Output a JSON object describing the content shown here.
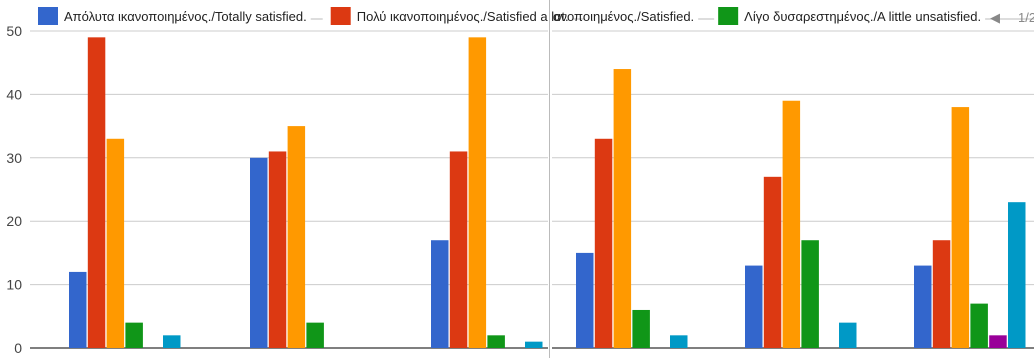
{
  "chart_data": [
    {
      "type": "bar",
      "categories": [
        "",
        "",
        ""
      ],
      "series": [
        {
          "name": "Απόλυτα ικανοποιημένος./Totally satisfied.",
          "color": "#3366cc",
          "values": [
            12,
            30,
            17
          ]
        },
        {
          "name": "Πολύ ικανοποιημένος./Satisfied a lot.",
          "color": "#dc3912",
          "values": [
            49,
            31,
            31
          ]
        },
        {
          "name": "",
          "color": "#ff9900",
          "values": [
            33,
            35,
            49
          ]
        },
        {
          "name": "",
          "color": "#109618",
          "values": [
            4,
            4,
            2
          ]
        },
        {
          "name": "",
          "color": "#990099",
          "values": [
            0,
            0,
            0
          ]
        },
        {
          "name": "",
          "color": "#0099c6",
          "values": [
            2,
            0,
            1
          ]
        }
      ],
      "ylim": [
        0,
        50
      ],
      "yticks": [
        0,
        10,
        20,
        30,
        40,
        50
      ],
      "grid": true,
      "legend": "top"
    },
    {
      "type": "bar",
      "categories": [
        "",
        "",
        ""
      ],
      "series": [
        {
          "name": "",
          "color": "#3366cc",
          "values": [
            15,
            13,
            13
          ]
        },
        {
          "name": "",
          "color": "#dc3912",
          "values": [
            33,
            27,
            17
          ]
        },
        {
          "name": "ανοποιημένος./Satisfied.",
          "color": "#ff9900",
          "values": [
            44,
            39,
            38
          ]
        },
        {
          "name": "Λίγο δυσαρεστημένος./A little unsatisfied.",
          "color": "#109618",
          "values": [
            6,
            17,
            7
          ]
        },
        {
          "name": "",
          "color": "#990099",
          "values": [
            0,
            0,
            2
          ]
        },
        {
          "name": "",
          "color": "#0099c6",
          "values": [
            2,
            4,
            23
          ]
        }
      ],
      "ylim": [
        0,
        50
      ],
      "yticks": [],
      "grid": true,
      "legend": "top"
    }
  ],
  "legend_row": {
    "left": [
      {
        "label": "Απόλυτα ικανοποιημένος./Totally satisfied.",
        "color": "#3366cc"
      },
      {
        "label": "Πολύ ικανοποιημένος./Satisfied a lot.",
        "color": "#dc3912"
      }
    ],
    "right": [
      {
        "label": "ανοποιημένος./Satisfied.",
        "color": "#ff9900"
      },
      {
        "label": "Λίγο δυσαρεστημένος./A little unsatisfied.",
        "color": "#109618"
      }
    ],
    "pager": "1/2",
    "pager_arrow": "◀"
  }
}
